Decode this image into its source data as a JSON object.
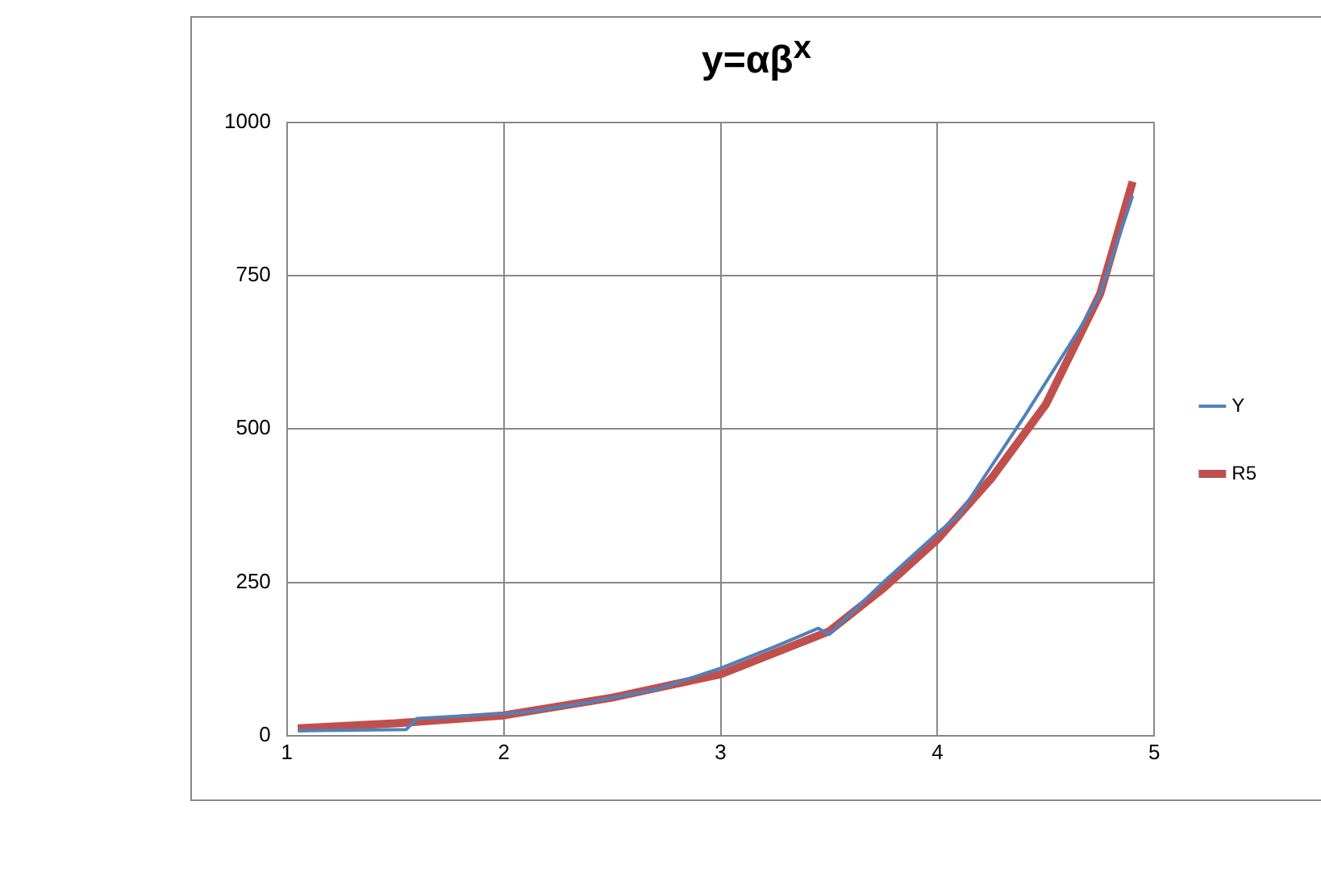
{
  "chart_data": {
    "type": "line",
    "title": "y=αβ$^{x}$",
    "xlim": [
      1,
      5
    ],
    "xticks": [
      1,
      2,
      3,
      4,
      5
    ],
    "ylim": [
      0,
      1000
    ],
    "yticks": [
      0,
      250,
      500,
      750,
      1000
    ],
    "grid": true,
    "legend": "right",
    "marker": "none",
    "series": [
      {
        "name": "Y",
        "color": "#4f81bd",
        "x": [
          1.05,
          1.3,
          1.55,
          1.6,
          1.8,
          2.1,
          2.4,
          2.7,
          3.0,
          3.25,
          3.45,
          3.5,
          3.75,
          4.0,
          4.1,
          4.4,
          4.65,
          4.75,
          4.9
        ],
        "values": [
          8,
          9,
          10,
          28,
          32,
          38,
          55,
          75,
          110,
          145,
          175,
          165,
          250,
          330,
          360,
          520,
          660,
          720,
          880
        ]
      },
      {
        "name": "R5",
        "color": "#c0504d",
        "x": [
          1.05,
          1.5,
          2.0,
          2.5,
          3.0,
          3.5,
          3.75,
          4.0,
          4.25,
          4.5,
          4.75,
          4.9
        ],
        "values": [
          12,
          20,
          33,
          62,
          100,
          170,
          240,
          320,
          420,
          540,
          720,
          903
        ]
      }
    ]
  }
}
